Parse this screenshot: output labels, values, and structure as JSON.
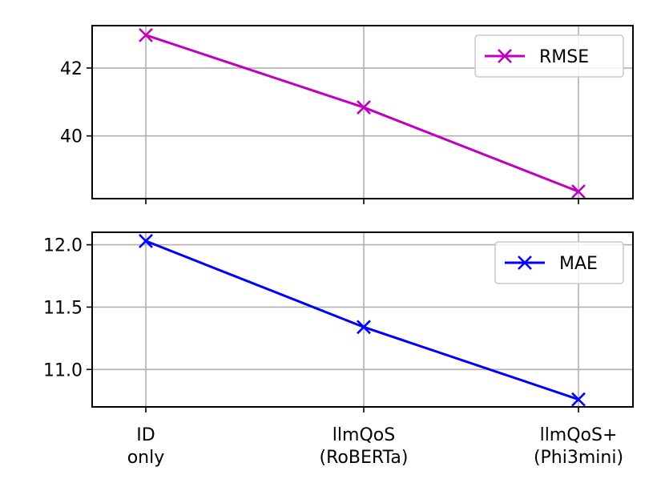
{
  "chart_data": [
    {
      "type": "line",
      "categories": [
        "ID\nonly",
        "llmQoS\n(RoBERTa)",
        "llmQoS+\n(Phi3mini)"
      ],
      "series": [
        {
          "name": "RMSE",
          "values": [
            42.97,
            40.84,
            38.36
          ],
          "color": "#bf00bf",
          "marker": "x"
        }
      ],
      "ylim": [
        38.15,
        43.25
      ],
      "yticks": [
        "40",
        "42"
      ],
      "grid": true,
      "legend_position": "upper right"
    },
    {
      "type": "line",
      "categories": [
        "ID\nonly",
        "llmQoS\n(RoBERTa)",
        "llmQoS+\n(Phi3mini)"
      ],
      "series": [
        {
          "name": "MAE",
          "values": [
            12.03,
            11.34,
            10.76
          ],
          "color": "#0000ff",
          "marker": "x"
        }
      ],
      "ylim": [
        10.7,
        12.1
      ],
      "yticks": [
        "11.0",
        "11.5",
        "12.0"
      ],
      "grid": true,
      "legend_position": "upper right"
    }
  ],
  "shared_x_tick_labels": [
    [
      "ID",
      "only"
    ],
    [
      "llmQoS",
      "(RoBERTa)"
    ],
    [
      "llmQoS+",
      "(Phi3mini)"
    ]
  ]
}
